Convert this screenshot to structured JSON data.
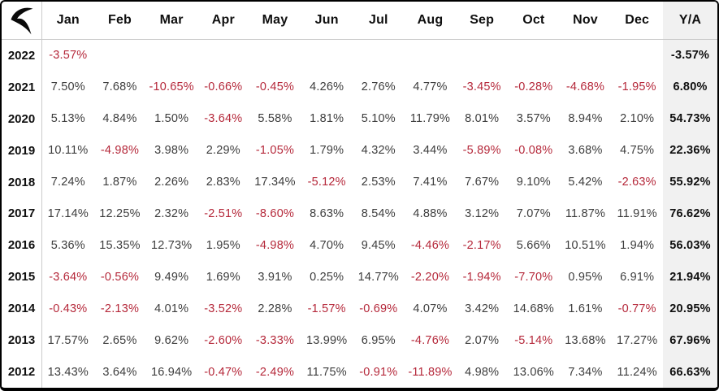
{
  "brand": {
    "logo_icon": "swoosh-r-logo"
  },
  "colors": {
    "negative_text": "#b5283a",
    "positive_text": "#3d3d3d",
    "header_text": "#0f0f0f",
    "total_column_bg": "#f1f1f1",
    "grid_line": "#cbcbcb",
    "outer_border": "#000000",
    "background": "#ffffff"
  },
  "chart_data": {
    "type": "table",
    "title": "",
    "columns": [
      "Jan",
      "Feb",
      "Mar",
      "Apr",
      "May",
      "Jun",
      "Jul",
      "Aug",
      "Sep",
      "Oct",
      "Nov",
      "Dec",
      "Y/A"
    ],
    "value_format": "percent_2dp",
    "negative_style": "red-text",
    "grid": "header-separator-and-year-column-only",
    "legend_position": "none",
    "rows": [
      {
        "year": "2022",
        "monthly": [
          -3.57,
          null,
          null,
          null,
          null,
          null,
          null,
          null,
          null,
          null,
          null,
          null
        ],
        "yearly": -3.57
      },
      {
        "year": "2021",
        "monthly": [
          7.5,
          7.68,
          -10.65,
          -0.66,
          -0.45,
          4.26,
          2.76,
          4.77,
          -3.45,
          -0.28,
          -4.68,
          -1.95
        ],
        "yearly": 6.8
      },
      {
        "year": "2020",
        "monthly": [
          5.13,
          4.84,
          1.5,
          -3.64,
          5.58,
          1.81,
          5.1,
          11.79,
          8.01,
          3.57,
          8.94,
          2.1
        ],
        "yearly": 54.73
      },
      {
        "year": "2019",
        "monthly": [
          10.11,
          -4.98,
          3.98,
          2.29,
          -1.05,
          1.79,
          4.32,
          3.44,
          -5.89,
          -0.08,
          3.68,
          4.75
        ],
        "yearly": 22.36
      },
      {
        "year": "2018",
        "monthly": [
          7.24,
          1.87,
          2.26,
          2.83,
          17.34,
          -5.12,
          2.53,
          7.41,
          7.67,
          9.1,
          5.42,
          -2.63
        ],
        "yearly": 55.92
      },
      {
        "year": "2017",
        "monthly": [
          17.14,
          12.25,
          2.32,
          -2.51,
          -8.6,
          8.63,
          8.54,
          4.88,
          3.12,
          7.07,
          11.87,
          11.91
        ],
        "yearly": 76.62
      },
      {
        "year": "2016",
        "monthly": [
          5.36,
          15.35,
          12.73,
          1.95,
          -4.98,
          4.7,
          9.45,
          -4.46,
          -2.17,
          5.66,
          10.51,
          1.94
        ],
        "yearly": 56.03
      },
      {
        "year": "2015",
        "monthly": [
          -3.64,
          -0.56,
          9.49,
          1.69,
          3.91,
          0.25,
          14.77,
          -2.2,
          -1.94,
          -7.7,
          0.95,
          6.91
        ],
        "yearly": 21.94
      },
      {
        "year": "2014",
        "monthly": [
          -0.43,
          -2.13,
          4.01,
          -3.52,
          2.28,
          -1.57,
          -0.69,
          4.07,
          3.42,
          14.68,
          1.61,
          -0.77
        ],
        "yearly": 20.95
      },
      {
        "year": "2013",
        "monthly": [
          17.57,
          2.65,
          9.62,
          -2.6,
          -3.33,
          13.99,
          6.95,
          -4.76,
          2.07,
          -5.14,
          13.68,
          17.27
        ],
        "yearly": 67.96
      },
      {
        "year": "2012",
        "monthly": [
          13.43,
          3.64,
          16.94,
          -0.47,
          -2.49,
          11.75,
          -0.91,
          -11.89,
          4.98,
          13.06,
          7.34,
          11.24
        ],
        "yearly": 66.63
      }
    ]
  }
}
